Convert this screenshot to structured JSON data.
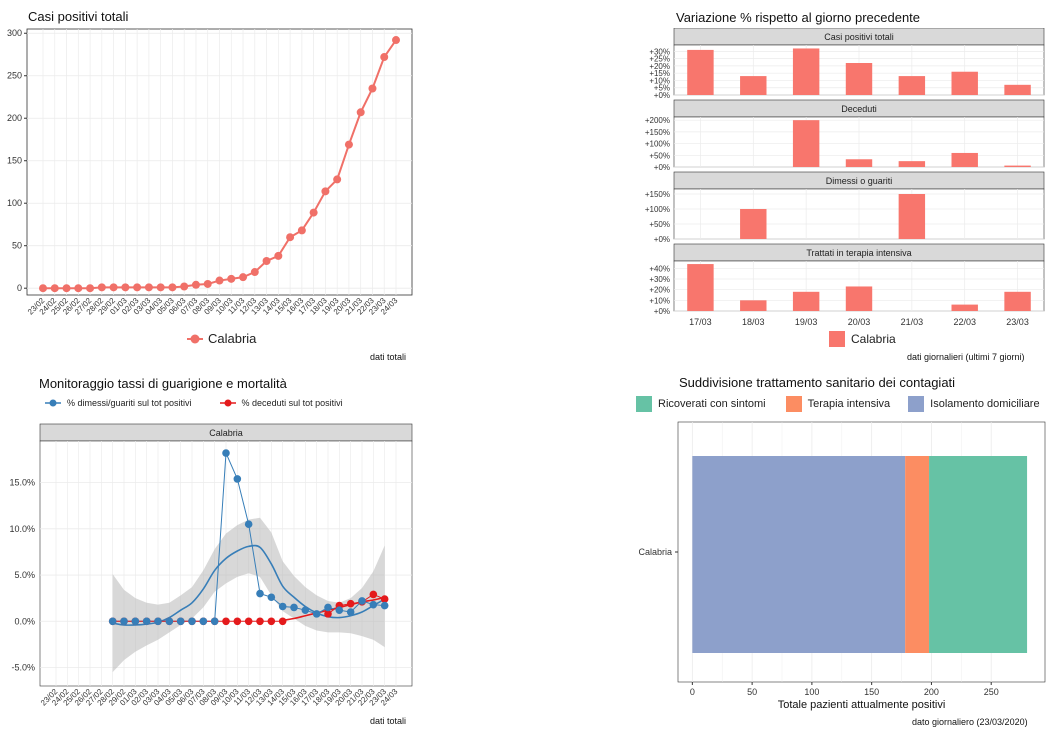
{
  "colors": {
    "calabria": "#F07068",
    "bar": "#F8766D",
    "dimessi": "#377EB8",
    "deceduti": "#E41A1C",
    "ribbon": "#B8B8B8",
    "ricoverati": "#66C2A5",
    "terapia": "#FC8D62",
    "isolamento": "#8DA0CB",
    "strip": "#D9D9D9",
    "grid": "#EBEBEB"
  },
  "chart_data": [
    {
      "id": "casi-totali",
      "type": "line",
      "title": "Casi positivi totali",
      "x": [
        "23/02",
        "24/02",
        "25/02",
        "26/02",
        "27/02",
        "28/02",
        "29/02",
        "01/03",
        "02/03",
        "03/03",
        "04/03",
        "05/03",
        "06/03",
        "07/03",
        "08/03",
        "09/03",
        "10/03",
        "11/03",
        "12/03",
        "13/03",
        "14/03",
        "15/03",
        "16/03",
        "17/03",
        "18/03",
        "19/03",
        "20/03",
        "21/03",
        "22/03",
        "23/03",
        "24/03"
      ],
      "series": [
        {
          "name": "Calabria",
          "values": [
            0,
            0,
            0,
            0,
            0,
            1,
            1,
            1,
            1,
            1,
            1,
            1,
            2,
            4,
            5,
            9,
            11,
            13,
            19,
            32,
            38,
            60,
            68,
            89,
            114,
            128,
            169,
            207,
            235,
            272,
            292
          ]
        }
      ],
      "yticks": [
        0,
        50,
        100,
        150,
        200,
        250,
        300
      ],
      "ylim": [
        -8,
        305
      ],
      "legend_position": "bottom",
      "note": "dati totali"
    },
    {
      "id": "variazione",
      "type": "bar",
      "title": "Variazione % rispetto al giorno precedente",
      "categories": [
        "17/03",
        "18/03",
        "19/03",
        "20/03",
        "21/03",
        "22/03",
        "23/03"
      ],
      "facets": [
        {
          "label": "Casi positivi totali",
          "values": [
            31,
            13,
            32,
            22,
            13,
            16,
            7
          ],
          "yticks": [
            0,
            5,
            10,
            15,
            20,
            25,
            30
          ],
          "tick_labels": [
            "+0%",
            "+5%",
            "+10%",
            "+15%",
            "+20%",
            "+25%",
            "+30%"
          ],
          "ymax": 33
        },
        {
          "label": "Deceduti",
          "values": [
            null,
            null,
            200,
            33,
            25,
            60,
            6
          ],
          "yticks": [
            0,
            50,
            100,
            150,
            200
          ],
          "tick_labels": [
            "+0%",
            "+50%",
            "+100%",
            "+150%",
            "+200%"
          ],
          "ymax": 205
        },
        {
          "label": "Dimessi o guariti",
          "values": [
            null,
            100,
            null,
            null,
            150,
            null,
            null
          ],
          "yticks": [
            0,
            50,
            100,
            150
          ],
          "tick_labels": [
            "+0%",
            "+50%",
            "+100%",
            "+150%"
          ],
          "ymax": 160
        },
        {
          "label": "Trattati in terapia intensiva",
          "values": [
            44,
            10,
            18,
            23,
            null,
            6,
            18
          ],
          "yticks": [
            0,
            10,
            20,
            30,
            40
          ],
          "tick_labels": [
            "+0%",
            "+10%",
            "+20%",
            "+30%",
            "+40%"
          ],
          "ymax": 45
        }
      ],
      "legend": "Calabria",
      "legend_position": "bottom",
      "note": "dati giornalieri (ultimi 7 giorni)"
    },
    {
      "id": "tassi",
      "type": "line",
      "title": "Monitoraggio tassi di guarigione e mortalità",
      "facet": "Calabria",
      "x": [
        "23/02",
        "24/02",
        "25/02",
        "26/02",
        "27/02",
        "28/02",
        "29/02",
        "01/03",
        "02/03",
        "03/03",
        "04/03",
        "05/03",
        "06/03",
        "07/03",
        "08/03",
        "09/03",
        "10/03",
        "11/03",
        "12/03",
        "13/03",
        "14/03",
        "15/03",
        "16/03",
        "17/03",
        "18/03",
        "19/03",
        "20/03",
        "21/03",
        "22/03",
        "23/03",
        "24/03"
      ],
      "series": [
        {
          "name": "% dimessi/guariti sul tot positivi",
          "values": [
            null,
            null,
            null,
            null,
            null,
            0,
            0,
            0,
            0,
            0,
            0,
            0,
            0,
            0,
            0,
            18.2,
            15.4,
            10.5,
            3.0,
            2.6,
            1.6,
            1.5,
            1.2,
            0.8,
            1.5,
            1.2,
            1.0,
            2.2,
            1.8,
            1.7,
            null
          ],
          "smooth": [
            null,
            null,
            null,
            null,
            null,
            -0.2,
            -0.4,
            -0.4,
            -0.3,
            -0.1,
            0.4,
            1.2,
            2.0,
            3.5,
            5.5,
            6.8,
            7.6,
            8.1,
            8.0,
            6.2,
            3.8,
            2.6,
            1.6,
            0.9,
            0.5,
            0.4,
            0.6,
            1.0,
            1.7,
            2.4,
            null
          ],
          "ribbon_low": [
            null,
            null,
            null,
            null,
            null,
            -5.5,
            -4.2,
            -3.3,
            -2.6,
            -2.0,
            -1.2,
            -0.4,
            0.3,
            1.5,
            3.2,
            4.1,
            4.8,
            5.2,
            4.8,
            2.8,
            1.1,
            0.3,
            -0.5,
            -1.0,
            -1.2,
            -1.2,
            -1.3,
            -1.6,
            -2.0,
            -2.8,
            null
          ],
          "ribbon_high": [
            null,
            null,
            null,
            null,
            null,
            5.1,
            3.4,
            2.5,
            2.0,
            1.8,
            2.0,
            2.8,
            3.7,
            5.5,
            7.8,
            9.5,
            10.4,
            11.0,
            11.2,
            9.6,
            6.5,
            4.9,
            3.7,
            2.8,
            2.2,
            2.0,
            2.5,
            3.6,
            5.4,
            8.2,
            null
          ]
        },
        {
          "name": "% deceduti sul tot positivi",
          "values": [
            null,
            null,
            null,
            null,
            null,
            0,
            0,
            0,
            0,
            0,
            0,
            0,
            0,
            0,
            0,
            0,
            0,
            0,
            0,
            0,
            0,
            null,
            null,
            null,
            0.8,
            1.7,
            1.9,
            2.1,
            2.9,
            2.4,
            null
          ],
          "smooth": [
            null,
            null,
            null,
            null,
            null,
            null,
            null,
            null,
            null,
            null,
            null,
            null,
            null,
            null,
            null,
            null,
            null,
            null,
            null,
            null,
            0.1,
            0.3,
            0.6,
            0.9,
            1.2,
            1.5,
            1.8,
            2.1,
            2.3,
            2.6,
            null
          ]
        }
      ],
      "yticks": [
        -5,
        0,
        5,
        10,
        15
      ],
      "tick_labels": [
        "-5.0%",
        "0.0%",
        "5.0%",
        "10.0%",
        "15.0%"
      ],
      "ylim": [
        -7,
        19.5
      ],
      "legend_position": "top",
      "note": "dati totali"
    },
    {
      "id": "trattamento",
      "type": "bar",
      "orientation": "horizontal-stacked",
      "title": "Suddivisione trattamento sanitario dei contagiati",
      "categories": [
        "Calabria"
      ],
      "series": [
        {
          "name": "Ricoverati con sintomi",
          "values": [
            82
          ]
        },
        {
          "name": "Terapia intensiva",
          "values": [
            20
          ]
        },
        {
          "name": "Isolamento domiciliare",
          "values": [
            178
          ]
        }
      ],
      "xticks": [
        0,
        50,
        100,
        150,
        200,
        250
      ],
      "xlim": [
        -12,
        295
      ],
      "xlabel": "Totale pazienti attualmente positivi",
      "legend_position": "top",
      "note": "dato giornaliero (23/03/2020)"
    }
  ]
}
